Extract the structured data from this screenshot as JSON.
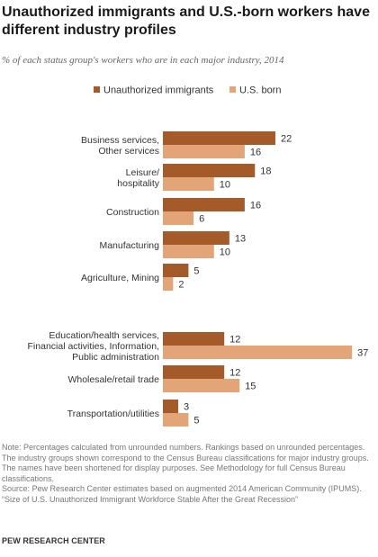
{
  "colors": {
    "unauthorized": "#a55a2a",
    "us_born": "#e3a577"
  },
  "title": "Unauthorized immigrants and U.S.-born workers have different industry profiles",
  "subtitle": "% of each status group's workers who are in each major industry, 2014",
  "chart_data": {
    "type": "bar",
    "orientation": "horizontal",
    "legend_position": "top",
    "grid": false,
    "xlim": [
      0,
      37
    ],
    "categories": [
      [
        "Business services,",
        "Other services"
      ],
      [
        "Leisure/",
        "hospitality"
      ],
      [
        "Construction"
      ],
      [
        "Manufacturing"
      ],
      [
        "Agriculture, Mining"
      ],
      [
        "Education/health services,",
        "Financial activities, Information,",
        "Public administration"
      ],
      [
        "Wholesale/retail trade"
      ],
      [
        "Transportation/utilities"
      ]
    ],
    "series": [
      {
        "name": "Unauthorized immigrants",
        "values": [
          22,
          18,
          16,
          13,
          5,
          12,
          12,
          3
        ]
      },
      {
        "name": "U.S. born",
        "values": [
          16,
          10,
          6,
          10,
          2,
          37,
          15,
          5
        ]
      }
    ]
  },
  "notes": {
    "note": "Note: Percentages calculated from unrounded numbers. Rankings based on unrounded percentages. The industry groups shown correspond to the Census Bureau classifications for major industry groups. The names have been shortened for display purposes. See Methodology for full Census Bureau classifications.",
    "source": "Source: Pew Research Center estimates based on augmented 2014 American Community (IPUMS).",
    "report": "“Size of U.S. Unauthorized Immigrant Workforce Stable After the Great Recession”"
  },
  "footer": "PEW RESEARCH CENTER"
}
